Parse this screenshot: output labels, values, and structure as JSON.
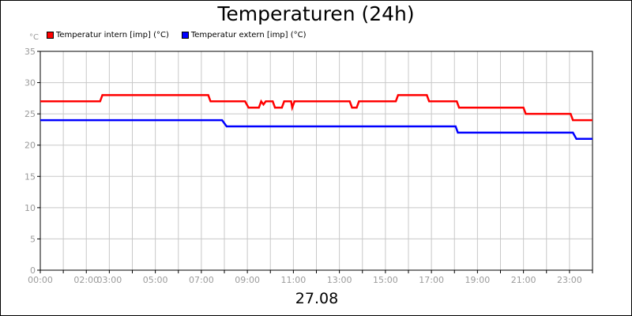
{
  "chart_data": {
    "type": "line",
    "title": "Temperaturen (24h)",
    "ylabel": "°C",
    "xlabel": "27.08",
    "ylim": [
      0,
      35
    ],
    "yticks": [
      0,
      5,
      10,
      15,
      20,
      25,
      30,
      35
    ],
    "xlim": [
      0,
      24
    ],
    "xticks": [
      {
        "label": "00:00",
        "hour": 0
      },
      {
        "label": "02:00",
        "hour": 2
      },
      {
        "label": "03:00",
        "hour": 3
      },
      {
        "label": "05:00",
        "hour": 5
      },
      {
        "label": "07:00",
        "hour": 7
      },
      {
        "label": "09:00",
        "hour": 9
      },
      {
        "label": "11:00",
        "hour": 11
      },
      {
        "label": "13:00",
        "hour": 13
      },
      {
        "label": "15:00",
        "hour": 15
      },
      {
        "label": "17:00",
        "hour": 17
      },
      {
        "label": "19:00",
        "hour": 19
      },
      {
        "label": "21:00",
        "hour": 21
      },
      {
        "label": "23:00",
        "hour": 23
      }
    ],
    "grid": true,
    "legend_position": "top-left",
    "series": [
      {
        "name": "Temperatur intern [imp] (°C)",
        "color": "#ff0000",
        "step": true,
        "points": [
          [
            0.0,
            27
          ],
          [
            2.6,
            27
          ],
          [
            2.7,
            28
          ],
          [
            7.3,
            28
          ],
          [
            7.4,
            27
          ],
          [
            8.9,
            27
          ],
          [
            9.05,
            26
          ],
          [
            9.5,
            26
          ],
          [
            9.6,
            27
          ],
          [
            9.7,
            26.5
          ],
          [
            9.8,
            27
          ],
          [
            10.1,
            27
          ],
          [
            10.2,
            26
          ],
          [
            10.5,
            26
          ],
          [
            10.6,
            27
          ],
          [
            10.9,
            27
          ],
          [
            10.95,
            26
          ],
          [
            11.05,
            27
          ],
          [
            13.45,
            27
          ],
          [
            13.55,
            26
          ],
          [
            13.75,
            26
          ],
          [
            13.85,
            27
          ],
          [
            15.45,
            27
          ],
          [
            15.55,
            28
          ],
          [
            16.8,
            28
          ],
          [
            16.9,
            27
          ],
          [
            18.1,
            27
          ],
          [
            18.2,
            26
          ],
          [
            21.0,
            26
          ],
          [
            21.1,
            25
          ],
          [
            23.05,
            25
          ],
          [
            23.15,
            24
          ],
          [
            24.0,
            24
          ]
        ]
      },
      {
        "name": "Temperatur extern [imp] (°C)",
        "color": "#0000ff",
        "step": true,
        "points": [
          [
            0.0,
            24
          ],
          [
            7.9,
            24
          ],
          [
            8.1,
            23
          ],
          [
            18.05,
            23
          ],
          [
            18.15,
            22
          ],
          [
            23.15,
            22
          ],
          [
            23.3,
            21
          ],
          [
            24.0,
            21
          ]
        ]
      }
    ]
  }
}
